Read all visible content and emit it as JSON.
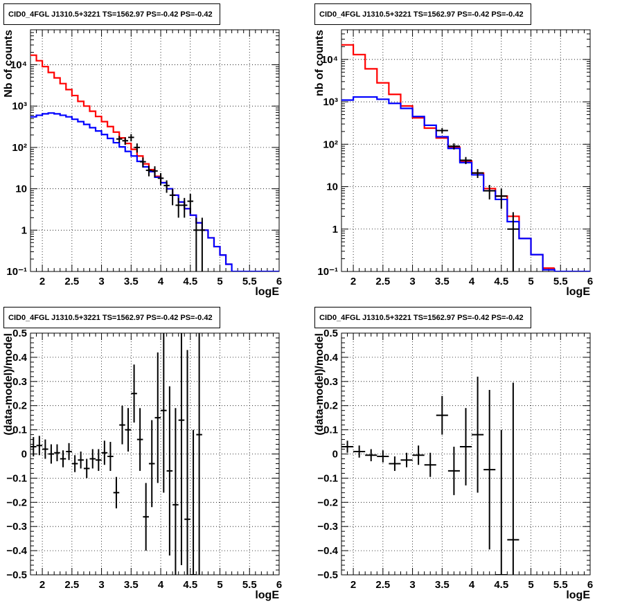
{
  "chart_data": [
    {
      "id": "top-left",
      "type": "line",
      "title": "CID0_4FGL J1310.5+3221 TS=1562.97 PS=-0.42 PS=-0.42",
      "xlabel": "logE",
      "ylabel": "Nb of counts",
      "ylog": true,
      "xlim": [
        1.8,
        6
      ],
      "ylim": [
        0.1,
        70000
      ],
      "xticks": [
        2,
        2.5,
        3,
        3.5,
        4,
        4.5,
        5,
        5.5,
        6
      ],
      "xtick_labels": [
        "2",
        "2.5",
        "3",
        "3.5",
        "4",
        "4.5",
        "5",
        "5.5",
        "6"
      ],
      "yticks": [
        0.1,
        1,
        10,
        100,
        1000,
        10000
      ],
      "ytick_labels": [
        "10⁻¹",
        "1",
        "10",
        "10²",
        "10³",
        "10⁴"
      ],
      "grid": true,
      "series": [
        {
          "color": "#ff0000",
          "style": "step",
          "edges": [
            1.8,
            1.9,
            2.0,
            2.1,
            2.2,
            2.3,
            2.4,
            2.5,
            2.6,
            2.7,
            2.8,
            2.9,
            3.0,
            3.1,
            3.2,
            3.3,
            3.4,
            3.5,
            3.6,
            3.7,
            3.8,
            3.9,
            4.0,
            4.1,
            4.2,
            4.3,
            4.4,
            4.5,
            4.6,
            4.7,
            4.8,
            4.9,
            5.0,
            5.1,
            5.2
          ],
          "values": [
            17000,
            12500,
            9000,
            6500,
            4800,
            3500,
            2500,
            1800,
            1300,
            1000,
            750,
            560,
            420,
            320,
            235,
            170,
            125,
            90,
            62,
            40,
            29,
            20,
            14,
            10,
            7,
            4.8,
            3.3,
            2.3,
            1.5,
            1.0,
            0.65,
            0.4,
            0.25,
            0.15
          ]
        },
        {
          "color": "#0000ff",
          "style": "step",
          "edges": [
            1.8,
            1.9,
            2.0,
            2.1,
            2.2,
            2.3,
            2.4,
            2.5,
            2.6,
            2.7,
            2.8,
            2.9,
            3.0,
            3.1,
            3.2,
            3.3,
            3.4,
            3.5,
            3.6,
            3.7,
            3.8,
            3.9,
            4.0,
            4.1,
            4.2,
            4.3,
            4.4,
            4.5,
            4.6,
            4.7,
            4.8,
            4.9,
            5.0,
            5.1,
            5.2,
            6.0
          ],
          "values": [
            550,
            600,
            650,
            680,
            650,
            600,
            550,
            480,
            420,
            360,
            300,
            250,
            205,
            165,
            130,
            103,
            80,
            62,
            46,
            34,
            26,
            19,
            14,
            10,
            7,
            4.8,
            3.3,
            2.3,
            1.5,
            1.0,
            0.65,
            0.4,
            0.25,
            0.15,
            0.1
          ]
        },
        {
          "color": "#000000",
          "style": "errorbar",
          "x": [
            3.3,
            3.4,
            3.5,
            3.6,
            3.7,
            3.8,
            3.9,
            4.0,
            4.1,
            4.2,
            4.3,
            4.4,
            4.5,
            4.6,
            4.7
          ],
          "values": [
            160,
            145,
            175,
            100,
            45,
            28,
            27,
            18,
            12,
            7,
            4,
            4,
            5,
            1,
            1
          ],
          "yerr_low": [
            30,
            30,
            35,
            25,
            12,
            8,
            8,
            6,
            4,
            3,
            2,
            2,
            2.5,
            0.9,
            0.9
          ],
          "yerr_high": [
            30,
            30,
            35,
            25,
            12,
            8,
            8,
            6,
            4,
            3,
            2,
            2,
            2.5,
            1,
            1
          ],
          "xerr": 0.05
        }
      ]
    },
    {
      "id": "top-right",
      "type": "line",
      "title": "CID0_4FGL J1310.5+3221 TS=1562.97 PS=-0.42 PS=-0.42",
      "xlabel": "logE",
      "ylabel": "nb of counts",
      "ylog": true,
      "xlim": [
        1.8,
        6
      ],
      "ylim": [
        0.1,
        50000
      ],
      "xticks": [
        2,
        2.5,
        3,
        3.5,
        4,
        4.5,
        5,
        5.5,
        6
      ],
      "xtick_labels": [
        "2",
        "2.5",
        "3",
        "3.5",
        "4",
        "4.5",
        "5",
        "5.5",
        "6"
      ],
      "yticks": [
        0.1,
        1,
        10,
        100,
        1000,
        10000
      ],
      "ytick_labels": [
        "10⁻¹",
        "1",
        "10",
        "10²",
        "10³",
        "10⁴"
      ],
      "grid": true,
      "series": [
        {
          "color": "#ff0000",
          "style": "step",
          "edges": [
            1.8,
            2.0,
            2.2,
            2.4,
            2.6,
            2.8,
            3.0,
            3.2,
            3.4,
            3.6,
            3.8,
            4.0,
            4.2,
            4.4,
            4.6,
            4.8,
            5.0,
            5.2,
            5.4
          ],
          "values": [
            22000,
            13000,
            6000,
            2800,
            1500,
            800,
            420,
            240,
            140,
            85,
            40,
            21,
            9,
            6,
            2,
            0.6,
            0.25,
            0.12
          ]
        },
        {
          "color": "#0000ff",
          "style": "step",
          "edges": [
            1.8,
            2.0,
            2.2,
            2.4,
            2.6,
            2.8,
            3.0,
            3.2,
            3.4,
            3.6,
            3.8,
            4.0,
            4.2,
            4.4,
            4.6,
            4.8,
            5.0,
            5.2,
            5.4,
            6.0
          ],
          "values": [
            1100,
            1300,
            1300,
            1150,
            920,
            700,
            450,
            280,
            150,
            80,
            37,
            19,
            8,
            5,
            1.5,
            0.6,
            0.25,
            0.11,
            0.1
          ]
        },
        {
          "color": "#000000",
          "style": "errorbar",
          "x": [
            3.5,
            3.7,
            3.9,
            4.1,
            4.3,
            4.5,
            4.7
          ],
          "values": [
            210,
            90,
            42,
            21,
            8,
            6,
            1
          ],
          "yerr_low": [
            30,
            15,
            8,
            5,
            3,
            3,
            0.9
          ],
          "yerr_high": [
            30,
            15,
            8,
            5,
            3,
            3,
            1.5
          ],
          "xerr": 0.1
        }
      ]
    },
    {
      "id": "bottom-left",
      "type": "scatter",
      "title": "CID0_4FGL J1310.5+3221 TS=1562.97 PS=-0.42 PS=-0.42",
      "xlabel": "logE",
      "ylabel": "(data-model)/model",
      "ylog": false,
      "xlim": [
        1.8,
        6
      ],
      "ylim": [
        -0.5,
        0.5
      ],
      "xticks": [
        2,
        2.5,
        3,
        3.5,
        4,
        4.5,
        5,
        5.5,
        6
      ],
      "xtick_labels": [
        "2",
        "2.5",
        "3",
        "3.5",
        "4",
        "4.5",
        "5",
        "5.5",
        "6"
      ],
      "yticks": [
        -0.5,
        -0.4,
        -0.3,
        -0.2,
        -0.1,
        0,
        0.1,
        0.2,
        0.3,
        0.4,
        0.5
      ],
      "ytick_labels": [
        "−0.5",
        "−0.4",
        "−0.3",
        "−0.2",
        "−0.1",
        "0",
        "0.1",
        "0.2",
        "0.3",
        "0.4",
        "0.5"
      ],
      "grid": true,
      "series": [
        {
          "color": "#000000",
          "style": "errorbar",
          "x": [
            1.85,
            1.95,
            2.05,
            2.15,
            2.25,
            2.35,
            2.45,
            2.55,
            2.65,
            2.75,
            2.85,
            2.95,
            3.05,
            3.15,
            3.25,
            3.35,
            3.45,
            3.55,
            3.65,
            3.75,
            3.85,
            3.95,
            4.05,
            4.15,
            4.25,
            4.35,
            4.45,
            4.55,
            4.65
          ],
          "values": [
            0.03,
            0.035,
            0.02,
            0.0,
            0.005,
            -0.02,
            0.01,
            -0.04,
            -0.025,
            -0.06,
            -0.02,
            -0.025,
            0.005,
            -0.01,
            -0.16,
            0.12,
            0.1,
            0.25,
            0.06,
            -0.26,
            -0.04,
            0.15,
            0.18,
            -0.07,
            -0.21,
            0.14,
            -0.27,
            -0.5,
            0.08
          ],
          "yerr": [
            0.04,
            0.04,
            0.04,
            0.04,
            0.035,
            0.035,
            0.035,
            0.035,
            0.035,
            0.04,
            0.04,
            0.045,
            0.05,
            0.06,
            0.065,
            0.08,
            0.09,
            0.12,
            0.13,
            0.14,
            0.18,
            0.27,
            0.34,
            0.35,
            0.4,
            0.6,
            0.7,
            0.6,
            0.6
          ],
          "xerr": 0.05
        }
      ]
    },
    {
      "id": "bottom-right",
      "type": "scatter",
      "title": "CID0_4FGL J1310.5+3221 TS=1562.97 PS=-0.42 PS=-0.42",
      "xlabel": "logE",
      "ylabel": "(data-model)/model",
      "ylog": false,
      "xlim": [
        1.8,
        6
      ],
      "ylim": [
        -0.5,
        0.5
      ],
      "xticks": [
        2,
        2.5,
        3,
        3.5,
        4,
        4.5,
        5,
        5.5,
        6
      ],
      "xtick_labels": [
        "2",
        "2.5",
        "3",
        "3.5",
        "4",
        "4.5",
        "5",
        "5.5",
        "6"
      ],
      "yticks": [
        -0.5,
        -0.4,
        -0.3,
        -0.2,
        -0.1,
        0,
        0.1,
        0.2,
        0.3,
        0.4,
        0.5
      ],
      "ytick_labels": [
        "−0.5",
        "−0.4",
        "−0.3",
        "−0.2",
        "−0.1",
        "0",
        "0.1",
        "0.2",
        "0.3",
        "0.4",
        "0.5"
      ],
      "grid": true,
      "series": [
        {
          "color": "#000000",
          "style": "errorbar",
          "x": [
            1.9,
            2.1,
            2.3,
            2.5,
            2.7,
            2.9,
            3.1,
            3.3,
            3.5,
            3.7,
            3.9,
            4.1,
            4.3,
            4.5,
            4.7
          ],
          "values": [
            0.03,
            0.01,
            -0.005,
            -0.01,
            -0.04,
            -0.025,
            -0.005,
            -0.045,
            0.16,
            -0.07,
            0.03,
            0.08,
            -0.065,
            -0.5,
            -0.355
          ],
          "yerr": [
            0.025,
            0.025,
            0.025,
            0.025,
            0.03,
            0.03,
            0.04,
            0.05,
            0.08,
            0.1,
            0.16,
            0.24,
            0.33,
            0.6,
            0.65
          ],
          "xerr": 0.1
        }
      ]
    }
  ]
}
